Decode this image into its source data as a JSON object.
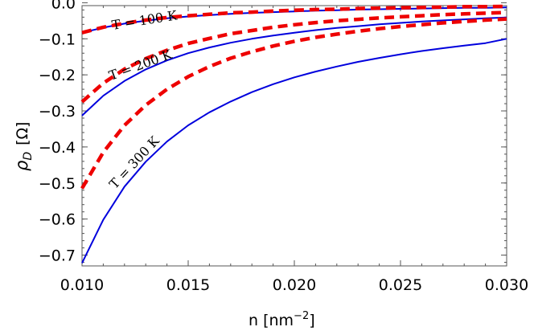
{
  "chart_data": {
    "type": "line",
    "title": "",
    "xlabel": "n  [nm",
    "xlabel_sup": "−2",
    "xlabel_close": "]",
    "ylabel_symbol": "ρ",
    "ylabel_sub": "D",
    "ylabel_unit": "[Ω]",
    "xlim": [
      0.01,
      0.03
    ],
    "ylim": [
      -0.73,
      -0.008
    ],
    "x_ticks": [
      0.01,
      0.015,
      0.02,
      0.025,
      0.03
    ],
    "x_tick_labels": [
      "0.010",
      "0.015",
      "0.020",
      "0.025",
      "0.030"
    ],
    "y_ticks": [
      0.0,
      -0.1,
      -0.2,
      -0.3,
      -0.4,
      -0.5,
      -0.6,
      -0.7
    ],
    "y_tick_labels": [
      "0.0",
      "−0.1",
      "−0.2",
      "−0.3",
      "−0.4",
      "−0.5",
      "−0.6",
      "−0.7"
    ],
    "x": [
      0.01,
      0.011,
      0.012,
      0.013,
      0.014,
      0.015,
      0.016,
      0.017,
      0.018,
      0.019,
      0.02,
      0.021,
      0.022,
      0.023,
      0.024,
      0.025,
      0.026,
      0.027,
      0.028,
      0.029,
      0.03
    ],
    "series": [
      {
        "name": "T = 100 K solid",
        "style": "solid",
        "color": "#0000dd",
        "values": [
          -0.083,
          -0.069,
          -0.058,
          -0.05,
          -0.043,
          -0.038,
          -0.034,
          -0.031,
          -0.028,
          -0.026,
          -0.024,
          -0.022,
          -0.021,
          -0.019,
          -0.018,
          -0.017,
          -0.016,
          -0.015,
          -0.014,
          -0.014,
          -0.013
        ]
      },
      {
        "name": "T = 100 K dashed",
        "style": "dashed",
        "color": "#ee0000",
        "values": [
          -0.083,
          -0.068,
          -0.057,
          -0.048,
          -0.041,
          -0.036,
          -0.032,
          -0.028,
          -0.026,
          -0.023,
          -0.021,
          -0.019,
          -0.018,
          -0.016,
          -0.015,
          -0.014,
          -0.013,
          -0.012,
          -0.011,
          -0.011,
          -0.01
        ]
      },
      {
        "name": "T = 200 K solid",
        "style": "solid",
        "color": "#0000dd",
        "values": [
          -0.313,
          -0.258,
          -0.217,
          -0.185,
          -0.16,
          -0.14,
          -0.124,
          -0.111,
          -0.1,
          -0.091,
          -0.083,
          -0.076,
          -0.07,
          -0.065,
          -0.06,
          -0.056,
          -0.052,
          -0.049,
          -0.046,
          -0.043,
          -0.041
        ]
      },
      {
        "name": "T = 200 K dashed",
        "style": "dashed",
        "color": "#ee0000",
        "values": [
          -0.275,
          -0.223,
          -0.184,
          -0.155,
          -0.132,
          -0.113,
          -0.099,
          -0.086,
          -0.077,
          -0.068,
          -0.061,
          -0.055,
          -0.05,
          -0.046,
          -0.042,
          -0.039,
          -0.036,
          -0.033,
          -0.031,
          -0.029,
          -0.027
        ]
      },
      {
        "name": "T = 300 K solid",
        "style": "solid",
        "color": "#0000dd",
        "values": [
          -0.722,
          -0.602,
          -0.51,
          -0.441,
          -0.385,
          -0.34,
          -0.304,
          -0.274,
          -0.248,
          -0.226,
          -0.207,
          -0.191,
          -0.177,
          -0.164,
          -0.153,
          -0.143,
          -0.134,
          -0.126,
          -0.119,
          -0.112,
          -0.1
        ]
      },
      {
        "name": "T = 300 K dashed",
        "style": "dashed",
        "color": "#ee0000",
        "values": [
          -0.515,
          -0.415,
          -0.34,
          -0.284,
          -0.24,
          -0.205,
          -0.177,
          -0.154,
          -0.136,
          -0.12,
          -0.107,
          -0.096,
          -0.087,
          -0.079,
          -0.072,
          -0.066,
          -0.061,
          -0.056,
          -0.052,
          -0.048,
          -0.045
        ]
      }
    ],
    "annotations": [
      "T = 100 K",
      "T = 200 K",
      "T = 300 K"
    ]
  }
}
